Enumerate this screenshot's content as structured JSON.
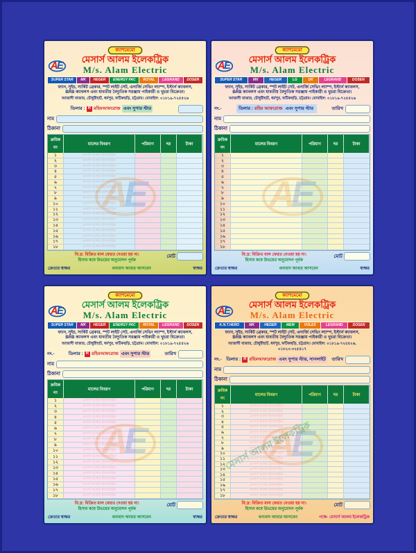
{
  "page": {
    "background": "#2e35a6"
  },
  "memos": [
    {
      "badge": "ক্যাশমেমো",
      "title_bn": "মেসার্স আলম ইলেকট্রিক",
      "title_en": "M/s. Alam Electric",
      "brands": [
        {
          "label": "SUPER STAR",
          "color": "#1659b5"
        },
        {
          "label": "MK",
          "color": "#8a2a8d"
        },
        {
          "label": "HEGER",
          "color": "#c42127"
        },
        {
          "label": "ENERGY PAC",
          "color": "#0e9347"
        },
        {
          "label": "ROYAL",
          "color": "#e8780f"
        },
        {
          "label": "LEGRAND",
          "color": "#e6418f"
        },
        {
          "label": "DOSEN",
          "color": "#c22b2b"
        }
      ],
      "desc_line1": "ফ্যান, সুইচ, সার্কিট ব্রেকার, স্পট লাইট সেট, এনার্জি সেভিং ল্যাম্প, ইস্টার্ন ক্যাবলস,",
      "desc_line2": "BRB ক্যাবলস এবং যাবতীয় বৈদ্যুতিক সরঞ্জাম পাইকারী ও খুচরা বিক্রেতা।",
      "address": "আজাদী বাজার, চৌধুরীহাট, ধর্মপুর, ফটিকছড়ি, চট্টগ্রাম। মোবাইল: ০১৮১৯-৭২৫৫২৬",
      "no_label": "",
      "dealer_prefix": "ডিলার :",
      "dealer_logo": "R",
      "dealer_red": "রহিমআফরোজ",
      "dealer_suffix": "এবং সুপার স্টার",
      "date_label": "",
      "name_label": "নাম",
      "addr_label": "ঠিকানা",
      "table": {
        "headers": [
          "ক্রমিক নং",
          "মালের বিবরণ",
          "পরিমাণ",
          "দর",
          "টাকা"
        ],
        "serials": [
          "১",
          "২",
          "৩",
          "৪",
          "৫",
          "৬",
          "৭",
          "৮",
          "৯",
          "১০",
          "১১",
          "১২",
          "১৩",
          "১৪",
          "১৫",
          "১৬",
          "১৭",
          "১৮"
        ]
      },
      "row_watermark": "মেসার্স আলম ইলেকট্রিক",
      "watermark_text": "",
      "note_red": "বি:দ্র: বিক্রিত মাল ফেরত দেওয়া হয় না।",
      "note_green": "হিসাব কষে উভয়ের অনুমোদন পূর্বক",
      "total_label": "মোট",
      "footer_left": "ক্রেতার স্বাক্ষর",
      "footer_center": "ধন্যবাদ আবার আসবেন",
      "footer_right": "স্বাক্ষর"
    },
    {
      "badge": "ক্যাশমেমো",
      "title_bn": "মেসার্স আলম ইলেকট্রিক",
      "title_en": "M/s. Alam Electric",
      "brands": [
        {
          "label": "SUPER STAR",
          "color": "#1659b5"
        },
        {
          "label": "MK",
          "color": "#8a2a8d"
        },
        {
          "label": "HEGER",
          "color": "#1f63c0"
        },
        {
          "label": "LG",
          "color": "#0e9347"
        },
        {
          "label": "UK",
          "color": "#e8780f"
        },
        {
          "label": "LEGRAND",
          "color": "#e6418f"
        },
        {
          "label": "DOSEN",
          "color": "#c22b2b"
        }
      ],
      "desc_line1": "ফ্যান, সুইচ, সার্কিট ব্রেকার, স্পট লাইট সেট, এনার্জি সেভিং ল্যাম্প, ইস্টার্ন ক্যাবলস,",
      "desc_line2": "BRB ক্যাবলস এবং যাবতীয় বৈদ্যুতিক সরঞ্জাম পাইকারী ও খুচরা বিক্রেতা।",
      "address": "আজাদী বাজার, চৌধুরীহাট, ধর্মপুর, ফটিকছড়ি, চট্টগ্রাম। মোবাইল: ০১৮১৯-৭২৫৫২৬",
      "no_label": "নং.-",
      "dealer_prefix": "ডিলার :",
      "dealer_logo": "",
      "dealer_red": "রহিম আফরোজ",
      "dealer_suffix": "এবং সুপার স্টার",
      "date_label": "তারিখ",
      "name_label": "নাম",
      "addr_label": "ঠিকানা",
      "table": {
        "headers": [
          "ক্রমিক নং",
          "মালের বিবরণ",
          "পরিমাণ",
          "দর",
          "টাকা"
        ],
        "serials": [
          "১",
          "২",
          "৩",
          "৪",
          "৫",
          "৬",
          "৭",
          "৮",
          "৯",
          "১০",
          "১১",
          "১২",
          "১৩",
          "১৪",
          "১৫",
          "১৬",
          "১৭",
          "১৮"
        ]
      },
      "row_watermark": "",
      "watermark_text": "",
      "note_red": "বি:দ্র: বিক্রিত মাল ফেরত নেওয়া হয় না।",
      "note_green": "হিসাব কষে উভয়ের অনুমোদন পূর্বক",
      "total_label": "মোট",
      "footer_left": "ক্রেতার স্বাক্ষর",
      "footer_center": "ধন্যবাদ আবার আসবেন",
      "footer_right": "স্বাক্ষর"
    },
    {
      "badge": "ক্যাশমেমো",
      "title_bn": "মেসার্স আলম ইলেকট্রিক",
      "title_en": "M/s. Alam Electric",
      "brands": [
        {
          "label": "SUPER STAR",
          "color": "#1659b5"
        },
        {
          "label": "MK",
          "color": "#8a2a8d"
        },
        {
          "label": "HEGER",
          "color": "#c42127"
        },
        {
          "label": "ENERGY PAC",
          "color": "#0e9347"
        },
        {
          "label": "ROYAL",
          "color": "#e8780f"
        },
        {
          "label": "LEGRAND",
          "color": "#e6418f"
        },
        {
          "label": "DOSEN",
          "color": "#c22b2b"
        }
      ],
      "desc_line1": "ফ্যান, সুইচ, সার্কিট ব্রেকার, স্পট লাইট সেট, এনার্জি সেভিং ল্যাম্প, ইস্টার্ন ক্যাবলস,",
      "desc_line2": "BRB ক্যাবলস এবং যাবতীয় বৈদ্যুতিক সরঞ্জাম পাইকারী ও খুচরা বিক্রেতা।",
      "address": "আজাদী বাজার, চৌধুরীহাট, ধর্মপুর, ফটিকছড়ি, চট্টগ্রাম। মোবাইল: ০১৮১৯-৭২৫৫২৬",
      "no_label": "নং.-",
      "dealer_prefix": "ডিলার :",
      "dealer_logo": "R",
      "dealer_red": "রহিমআফরোজ",
      "dealer_suffix": "এবং সুপার স্টার",
      "date_label": "তারিখ",
      "name_label": "নাম",
      "addr_label": "ঠিকানা",
      "table": {
        "headers": [
          "ক্রমিক নং",
          "মালের বিবরণ",
          "পরিমাণ",
          "দর",
          "টাকা"
        ],
        "serials": [
          "১",
          "২",
          "৩",
          "৪",
          "৫",
          "৬",
          "৭",
          "৮",
          "৯",
          "১০",
          "১১",
          "১২",
          "১৩",
          "১৪",
          "১৫",
          "১৬",
          "১৭",
          "১৮"
        ]
      },
      "row_watermark": "মেসার্স আলম ইলেকট্রিক",
      "watermark_text": "",
      "note_red": "বি:দ্র: বিক্রিত মাল ফেরত দেওয়া হয় না।",
      "note_green": "হিসাব কষে উভয়ের অনুমোদন পূর্বক",
      "total_label": "মোট",
      "footer_left": "ক্রেতার স্বাক্ষর",
      "footer_center": "ধন্যবাদ আবার আসবেন",
      "footer_right": "স্বাক্ষর"
    },
    {
      "badge": "ক্যাশমেমো",
      "title_bn": "মেসার্স আলম ইলেকট্রিক",
      "title_en": "M/s. Alam Electric",
      "brands": [
        {
          "label": "K.N.T.HERO",
          "color": "#1659b5"
        },
        {
          "label": "MK",
          "color": "#8a2a8d"
        },
        {
          "label": "HEGER",
          "color": "#1f63c0"
        },
        {
          "label": "MEM",
          "color": "#0e9347"
        },
        {
          "label": "VOLEX",
          "color": "#e8780f"
        },
        {
          "label": "LEGRAND",
          "color": "#e6418f"
        },
        {
          "label": "DOSEN",
          "color": "#c22b2b"
        }
      ],
      "desc_line1": "ফ্যান, সুইচ, সার্কিট ব্রেকার, স্পট লাইট সেট, এনার্জি সেভিং ল্যাম্প, ইস্টার্ন ক্যাবলস,",
      "desc_line2": "BRB ক্যাবলস এবং যাবতীয় বৈদ্যুতিক সরঞ্জাম পাইকারী ও খুচরা বিক্রেতা।",
      "address": "আজাদী বাজার, চৌধুরীহাট, ধর্মপুর, ফটিকছড়ি, চট্টগ্রাম। মোবাইল: ০১৮১৯-৭২৫৫২৬, ০১৮২০-৩২৫৪১৭",
      "no_label": "নং.-",
      "dealer_prefix": "ডিলার :",
      "dealer_logo": "R",
      "dealer_red": "রহিমআফরোজ",
      "dealer_suffix": "এবং সুপার স্টার, সানলাইট",
      "date_label": "তারিখ",
      "name_label": "নাম",
      "addr_label": "ঠিকানা",
      "table": {
        "headers": [
          "ক্রমিক নং",
          "মালের বিবরণ",
          "পরিমাণ",
          "দর",
          "টাকা"
        ],
        "serials": [
          "১",
          "২",
          "৩",
          "৪",
          "৫",
          "৬",
          "৭",
          "৮",
          "৯",
          "১০",
          "১১",
          "১২",
          "১৩",
          "১৪",
          "১৫",
          "১৬",
          "১৭",
          "১৮"
        ]
      },
      "row_watermark": "মেসার্স আলম ইলেকট্রিক",
      "watermark_text": "মেসার্স আলম ইলেকট্রিক",
      "note_red": "বি:দ্র: বিক্রিত মাল ফেরত নেওয়া হয় না।",
      "note_green": "হিসাব কষে উভয়ের অনুমোদন পূর্বক",
      "total_label": "মোট",
      "footer_left": "ক্রেতার স্বাক্ষর",
      "footer_center": "ধন্যবাদ আবার আসবেন",
      "footer_right": "পক্ষে- মেসার্স আলম ইলেকট্রিক"
    }
  ]
}
